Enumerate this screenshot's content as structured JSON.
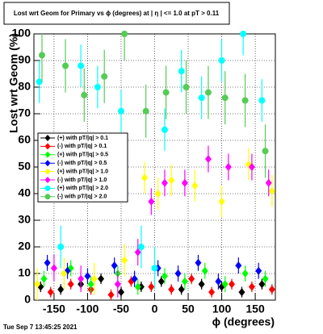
{
  "chart_data": {
    "type": "scatter",
    "title": "Lost wrt Geom for Primary vs ϕ (degrees) at | η | <= 1.0 at pT > 0.11",
    "x_label": "ϕ (degrees)",
    "y_label": "Lost wrt Geom (%)",
    "footer": "Tue Sep  7 13:45:25 2021",
    "xlim": [
      -180,
      180
    ],
    "xticks": [
      -150,
      -100,
      -50,
      0,
      50,
      100,
      150
    ],
    "ylim": [
      0,
      100
    ],
    "yticks": [
      0,
      10,
      20,
      30,
      40,
      50,
      60,
      70,
      80,
      90,
      100
    ],
    "grid": true,
    "legend": "left",
    "series": [
      {
        "name": "(+) with pT/|q| > 0.1",
        "color": "#000000",
        "marker": "diamond",
        "x": [
          -170,
          -140,
          -110,
          -80,
          -50,
          -20,
          10,
          40,
          70,
          100,
          130,
          160
        ],
        "values": [
          5,
          4,
          6,
          8,
          3,
          5,
          7,
          4,
          6,
          5,
          3,
          6
        ],
        "errors": [
          2,
          2,
          2,
          2,
          2,
          2,
          2,
          2,
          2,
          2,
          2,
          2
        ]
      },
      {
        "name": "(-) with pT/|q| > 0.1",
        "color": "#ff0000",
        "marker": "diamond",
        "x": [
          -155,
          -125,
          -95,
          -65,
          -35,
          -5,
          25,
          55,
          85,
          115,
          145,
          175
        ],
        "values": [
          3,
          6,
          4,
          2,
          7,
          5,
          4,
          8,
          3,
          6,
          5,
          4
        ],
        "errors": [
          2,
          2,
          2,
          2,
          2,
          2,
          2,
          2,
          2,
          2,
          2,
          2
        ]
      },
      {
        "name": "(+) with pT/|q| > 0.5",
        "color": "#00ff00",
        "marker": "diamond",
        "x": [
          -165,
          -125,
          -95,
          -55,
          -25,
          15,
          45,
          75,
          105,
          135,
          165
        ],
        "values": [
          8,
          12,
          6,
          10,
          5,
          9,
          7,
          11,
          6,
          10,
          8
        ],
        "errors": [
          3,
          3,
          3,
          3,
          3,
          3,
          3,
          3,
          3,
          3,
          3
        ]
      },
      {
        "name": "(-) with pT/|q| > 0.5",
        "color": "#0000ff",
        "marker": "diamond",
        "x": [
          -160,
          -130,
          -100,
          -60,
          -30,
          5,
          35,
          65,
          95,
          125,
          155
        ],
        "values": [
          14,
          11,
          9,
          13,
          8,
          12,
          10,
          14,
          7,
          13,
          11
        ],
        "errors": [
          3,
          3,
          3,
          3,
          3,
          3,
          3,
          3,
          3,
          3,
          3
        ]
      },
      {
        "name": "(+) with pT/|q| > 1.0",
        "color": "#ffff00",
        "marker": "diamond",
        "x": [
          -175,
          -135,
          -90,
          -45,
          -15,
          5,
          25,
          60,
          100,
          140,
          175
        ],
        "values": [
          6,
          10,
          8,
          15,
          46,
          40,
          45,
          43,
          37,
          51,
          41
        ],
        "errors": [
          6,
          6,
          6,
          6,
          6,
          6,
          6,
          6,
          6,
          6,
          6
        ]
      },
      {
        "name": "(-) with pT/|q| > 1.0",
        "color": "#ff00ff",
        "marker": "diamond",
        "x": [
          -150,
          -110,
          -55,
          -25,
          -5,
          15,
          45,
          80,
          110,
          145,
          170
        ],
        "values": [
          12,
          8,
          6,
          18,
          37,
          44,
          44,
          53,
          50,
          50,
          44
        ],
        "errors": [
          5,
          5,
          5,
          5,
          5,
          5,
          5,
          5,
          5,
          5,
          5
        ]
      },
      {
        "name": "(+) with pT/|q| > 2.0",
        "color": "#00ffff",
        "marker": "circle",
        "x": [
          -172,
          -140,
          -110,
          -85,
          -50,
          -20,
          0,
          15,
          40,
          70,
          100,
          132,
          160
        ],
        "values": [
          82,
          20,
          88,
          80,
          71,
          20,
          12,
          64,
          86,
          76,
          90,
          100,
          75
        ],
        "errors": [
          8,
          8,
          8,
          8,
          8,
          8,
          8,
          8,
          8,
          8,
          8,
          8,
          8
        ]
      },
      {
        "name": "(-) with pT/|q| > 2.0",
        "color": "#55cc55",
        "marker": "circle",
        "x": [
          -168,
          -133,
          -105,
          -75,
          -45,
          -13,
          17,
          47,
          80,
          105,
          135,
          165
        ],
        "values": [
          92,
          88,
          77,
          84,
          100,
          71,
          78,
          80,
          78,
          76,
          75,
          56
        ],
        "errors": [
          10,
          10,
          10,
          10,
          10,
          10,
          10,
          10,
          10,
          10,
          10,
          10
        ]
      }
    ]
  }
}
